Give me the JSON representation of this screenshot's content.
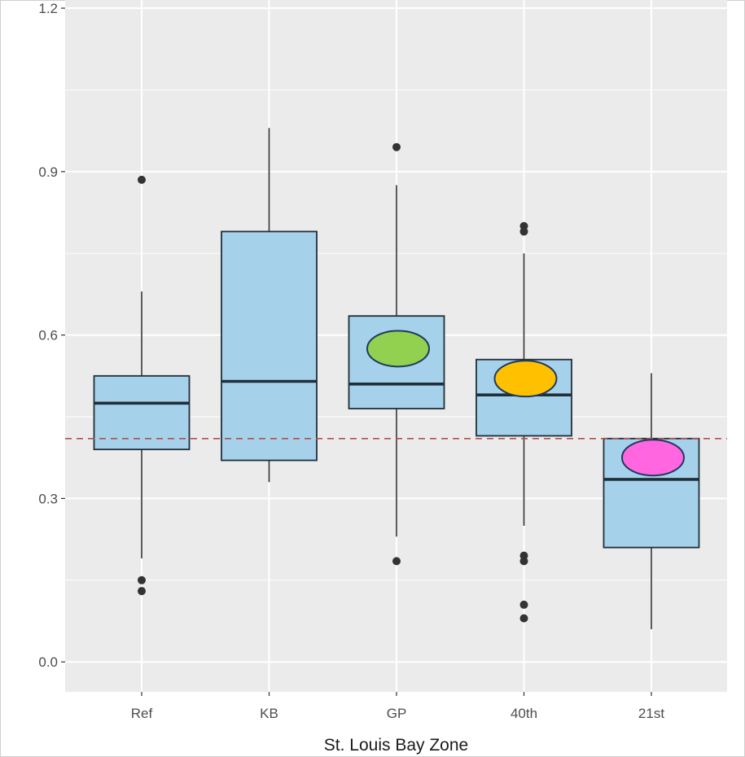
{
  "chart_data": {
    "type": "box",
    "title": "",
    "xlabel": "St. Louis Bay Zone",
    "ylabel": "",
    "ylim": [
      -0.055,
      1.215
    ],
    "yticks": [
      0.0,
      0.3,
      0.6,
      0.9,
      1.2
    ],
    "ytick_labels": [
      "0.0",
      "0.3",
      "0.6",
      "0.9",
      "1.2"
    ],
    "grid": true,
    "reference_line": {
      "y": 0.41,
      "style": "dashed",
      "color": "#b05050"
    },
    "box_fill": "#a6d1ea",
    "box_stroke": "#1f2f3a",
    "panel_background": "#ebebeb",
    "categories": [
      "Ref",
      "KB",
      "GP",
      "40th",
      "21st"
    ],
    "boxes": [
      {
        "category": "Ref",
        "whisker_low": 0.19,
        "q1": 0.39,
        "median": 0.475,
        "q3": 0.525,
        "whisker_high": 0.68,
        "outliers": [
          0.885,
          0.15,
          0.13
        ]
      },
      {
        "category": "KB",
        "whisker_low": 0.33,
        "q1": 0.37,
        "median": 0.515,
        "q3": 0.79,
        "whisker_high": 0.98,
        "outliers": []
      },
      {
        "category": "GP",
        "whisker_low": 0.23,
        "q1": 0.465,
        "median": 0.51,
        "q3": 0.635,
        "whisker_high": 0.875,
        "outliers": [
          0.945,
          0.185
        ]
      },
      {
        "category": "40th",
        "whisker_low": 0.25,
        "q1": 0.415,
        "median": 0.49,
        "q3": 0.555,
        "whisker_high": 0.75,
        "outliers": [
          0.8,
          0.79,
          0.195,
          0.185,
          0.105,
          0.08
        ]
      },
      {
        "category": "21st",
        "whisker_low": 0.06,
        "q1": 0.21,
        "median": 0.335,
        "q3": 0.41,
        "whisker_high": 0.53,
        "outliers": []
      }
    ],
    "markers": [
      {
        "category": "GP",
        "y": 0.575,
        "color": "#92d050"
      },
      {
        "category": "40th",
        "y": 0.52,
        "color": "#ffc000"
      },
      {
        "category": "21st",
        "y": 0.375,
        "color": "#ff66e0"
      }
    ]
  }
}
